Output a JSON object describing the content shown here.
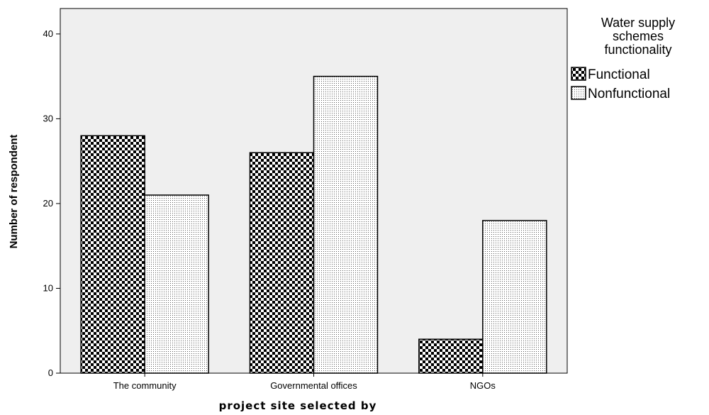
{
  "chart_data": {
    "type": "bar",
    "xlabel": "project site selected by",
    "ylabel": "Number of respondent",
    "ylim": [
      0,
      43
    ],
    "yticks": [
      0,
      10,
      20,
      30,
      40
    ],
    "grid": false,
    "legend_placement": "top-right",
    "legend_title_lines": [
      "Water supply",
      "schemes",
      "functionality"
    ],
    "categories": [
      "The community",
      "Governmental offices",
      "NGOs"
    ],
    "series": [
      {
        "name": "Functional",
        "values": [
          28,
          26,
          4
        ],
        "pattern": "checker",
        "color": "#000000"
      },
      {
        "name": "Nonfunctional",
        "values": [
          21,
          35,
          18
        ],
        "pattern": "dots",
        "color": "#555555"
      }
    ],
    "plot_background": "#efefef"
  }
}
